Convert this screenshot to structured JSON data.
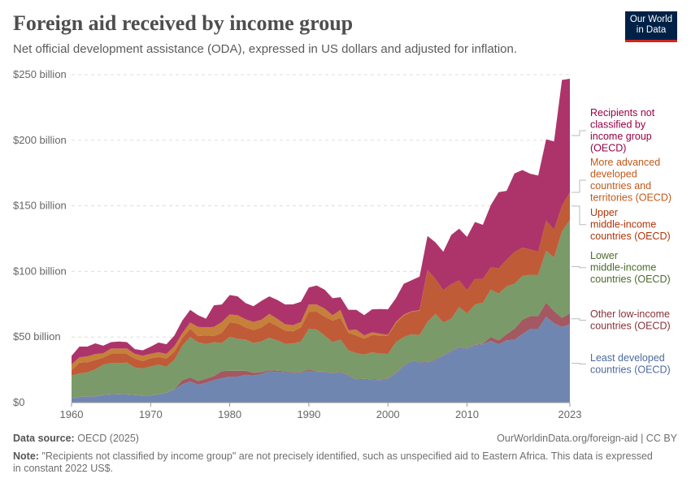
{
  "header": {
    "title": "Foreign aid received by income group",
    "subtitle": "Net official development assistance (ODA), expressed in US dollars and adjusted for inflation.",
    "logo": "Our World in Data"
  },
  "footer": {
    "source_label": "Data source:",
    "source": "OECD (2025)",
    "url": "OurWorldinData.org/foreign-aid | CC BY",
    "note_label": "Note:",
    "note": "\"Recipients not classified by income group\" are not precisely identified, such as unspecified aid to Eastern Africa. This data is expressed in constant 2022 US$."
  },
  "chart_data": {
    "type": "area",
    "stacked": true,
    "title": "Foreign aid received by income group",
    "ylim": [
      0,
      250
    ],
    "xlim": [
      1960,
      2023
    ],
    "grid": "horizontal dashed",
    "legend_placement": "right (inline labels)",
    "yticks": [
      {
        "value": 0,
        "label": "$0"
      },
      {
        "value": 50,
        "label": "$50 billion"
      },
      {
        "value": 100,
        "label": "$100 billion"
      },
      {
        "value": 150,
        "label": "$150 billion"
      },
      {
        "value": 200,
        "label": "$200 billion"
      },
      {
        "value": 250,
        "label": "$250 billion"
      }
    ],
    "xticks": [
      1960,
      1970,
      1980,
      1990,
      2000,
      2010,
      2023
    ],
    "x": [
      1960,
      1961,
      1962,
      1963,
      1964,
      1965,
      1966,
      1967,
      1968,
      1969,
      1970,
      1971,
      1972,
      1973,
      1974,
      1975,
      1976,
      1977,
      1978,
      1979,
      1980,
      1981,
      1982,
      1983,
      1984,
      1985,
      1986,
      1987,
      1988,
      1989,
      1990,
      1991,
      1992,
      1993,
      1994,
      1995,
      1996,
      1997,
      1998,
      1999,
      2000,
      2001,
      2002,
      2003,
      2004,
      2005,
      2006,
      2007,
      2008,
      2009,
      2010,
      2011,
      2012,
      2013,
      2014,
      2015,
      2016,
      2017,
      2018,
      2019,
      2020,
      2021,
      2022,
      2023
    ],
    "series": [
      {
        "name": "Least developed countries (OECD)",
        "color": "#6f87b0",
        "label_color": "#4c6a9c",
        "values": [
          3.3,
          4.1,
          4.7,
          4.7,
          5.8,
          6.2,
          6.4,
          6.2,
          5.8,
          5.4,
          5.4,
          6.2,
          7.4,
          9.9,
          14.0,
          16.1,
          13.6,
          15.1,
          17.1,
          18.6,
          19.8,
          19.8,
          21.2,
          20.6,
          21.9,
          23.9,
          23.3,
          23.3,
          22.7,
          22.7,
          24.3,
          23.3,
          23.3,
          22.3,
          22.9,
          20.6,
          17.5,
          17.7,
          17.3,
          17.1,
          18.1,
          22.3,
          28.0,
          31.5,
          30.9,
          30.5,
          32.6,
          35.7,
          39.2,
          41.9,
          41.2,
          43.9,
          44.5,
          47.0,
          44.5,
          47.4,
          48.0,
          52.2,
          56.3,
          56.3,
          65.6,
          60.4,
          57.7,
          59.8
        ]
      },
      {
        "name": "Other low-income countries (OECD)",
        "color": "#a35862",
        "label_color": "#883039",
        "values": [
          0.2,
          0.2,
          0.2,
          0.2,
          0.2,
          0.2,
          0.2,
          0.2,
          0.2,
          0.2,
          0.2,
          0.2,
          0.2,
          0.4,
          3.1,
          3.1,
          2.9,
          3.1,
          3.1,
          5.4,
          4.5,
          4.5,
          3.1,
          2.1,
          1.4,
          0.8,
          1.0,
          0.6,
          0.4,
          0.4,
          1.0,
          0.4,
          0.4,
          0.4,
          0.4,
          0.4,
          0.4,
          0.4,
          0.4,
          0.4,
          0.4,
          0.4,
          0.4,
          0.4,
          0.4,
          0.4,
          0.4,
          0.4,
          0.4,
          0.4,
          0.4,
          0.4,
          0.4,
          3.1,
          2.9,
          4.7,
          8.2,
          10.9,
          9.7,
          9.7,
          10.7,
          9.3,
          6.8,
          8.2
        ]
      },
      {
        "name": "Lower middle-income countries (OECD)",
        "color": "#7a9a69",
        "label_color": "#4c6a2c",
        "values": [
          17.1,
          17.9,
          18.1,
          20.4,
          22.9,
          23.7,
          23.5,
          24.1,
          20.8,
          20.4,
          21.9,
          22.5,
          19.8,
          22.3,
          26.2,
          30.9,
          29.5,
          26.4,
          25.8,
          21.4,
          25.8,
          24.3,
          23.7,
          22.7,
          23.3,
          24.7,
          23.1,
          21.0,
          21.9,
          23.5,
          30.9,
          32.0,
          27.4,
          23.3,
          24.7,
          18.8,
          19.8,
          18.6,
          20.6,
          19.8,
          18.6,
          23.3,
          21.6,
          20.2,
          20.2,
          30.5,
          34.6,
          24.9,
          24.3,
          30.5,
          26.4,
          30.5,
          31.3,
          36.1,
          35.7,
          36.5,
          34.4,
          33.4,
          31.5,
          31.5,
          39.6,
          40.8,
          66.0,
          71.3
        ]
      },
      {
        "name": "Upper middle-income countries (OECD)",
        "color": "#c05b37",
        "label_color": "#b13507",
        "values": [
          4.1,
          8.2,
          7.8,
          7.2,
          5.4,
          7.0,
          7.0,
          6.6,
          6.8,
          5.6,
          6.2,
          5.8,
          6.2,
          6.2,
          5.8,
          6.2,
          4.7,
          6.6,
          4.7,
          7.8,
          10.9,
          11.8,
          9.3,
          9.9,
          10.7,
          12.0,
          10.9,
          9.9,
          9.3,
          10.7,
          13.0,
          13.6,
          14.4,
          16.5,
          16.5,
          13.4,
          13.4,
          12.0,
          13.2,
          13.8,
          14.0,
          14.4,
          16.5,
          17.1,
          18.6,
          39.8,
          26.8,
          24.7,
          26.4,
          20.4,
          17.7,
          19.6,
          18.1,
          16.9,
          19.2,
          20.2,
          24.3,
          21.6,
          19.2,
          17.5,
          22.9,
          21.4,
          19.6,
          21.0
        ]
      },
      {
        "name": "More advanced developed countries and territories (OECD)",
        "color": "#c68039",
        "label_color": "#c05917",
        "values": [
          4.5,
          4.1,
          4.5,
          4.5,
          3.3,
          4.1,
          4.1,
          4.1,
          3.5,
          4.1,
          3.5,
          3.7,
          3.5,
          4.1,
          3.7,
          4.7,
          7.0,
          6.2,
          7.0,
          8.2,
          6.2,
          6.2,
          6.2,
          6.2,
          5.8,
          6.2,
          5.6,
          4.9,
          4.7,
          4.1,
          5.6,
          5.4,
          6.2,
          4.1,
          6.2,
          2.1,
          4.5,
          2.5,
          2.1,
          1.4,
          0.6,
          1.0,
          0.6,
          0.4,
          0.4,
          0,
          0,
          0,
          0,
          0,
          0,
          0,
          0,
          0,
          0,
          0,
          0,
          0,
          0,
          0,
          0,
          0,
          0,
          0
        ]
      },
      {
        "name": "Recipients not classified by income group (OECD)",
        "color": "#ad346a",
        "label_color": "#970046",
        "values": [
          6.4,
          8.2,
          7.4,
          8.2,
          5.8,
          4.9,
          5.4,
          4.9,
          3.7,
          4.1,
          5.4,
          7.4,
          7.4,
          8.2,
          9.7,
          9.7,
          8.9,
          6.6,
          16.5,
          13.4,
          14.8,
          14.4,
          12.4,
          12.0,
          14.4,
          13.4,
          14.4,
          15.1,
          15.9,
          15.5,
          13.0,
          14.6,
          14.4,
          13.0,
          9.7,
          15.5,
          15.1,
          15.5,
          17.5,
          18.8,
          19.4,
          18.1,
          23.5,
          23.7,
          25.6,
          25.8,
          27.8,
          29.3,
          37.5,
          39.4,
          40.6,
          43.3,
          41.2,
          47.4,
          58.1,
          52.6,
          59.8,
          59.2,
          57.7,
          58.1,
          61.9,
          67.2,
          95.9,
          86.6
        ]
      }
    ],
    "labels": [
      {
        "series": 5,
        "lines": [
          "Recipients not",
          "classified by",
          "income group",
          "(OECD)"
        ]
      },
      {
        "series": 4,
        "lines": [
          "More advanced",
          "developed",
          "countries and",
          "territories (OECD)"
        ]
      },
      {
        "series": 3,
        "lines": [
          "Upper",
          "middle-income",
          "countries (OECD)"
        ]
      },
      {
        "series": 2,
        "lines": [
          "Lower",
          "middle-income",
          "countries (OECD)"
        ]
      },
      {
        "series": 1,
        "lines": [
          "Other low-income",
          "countries (OECD)"
        ]
      },
      {
        "series": 0,
        "lines": [
          "Least developed",
          "countries (OECD)"
        ]
      }
    ]
  }
}
